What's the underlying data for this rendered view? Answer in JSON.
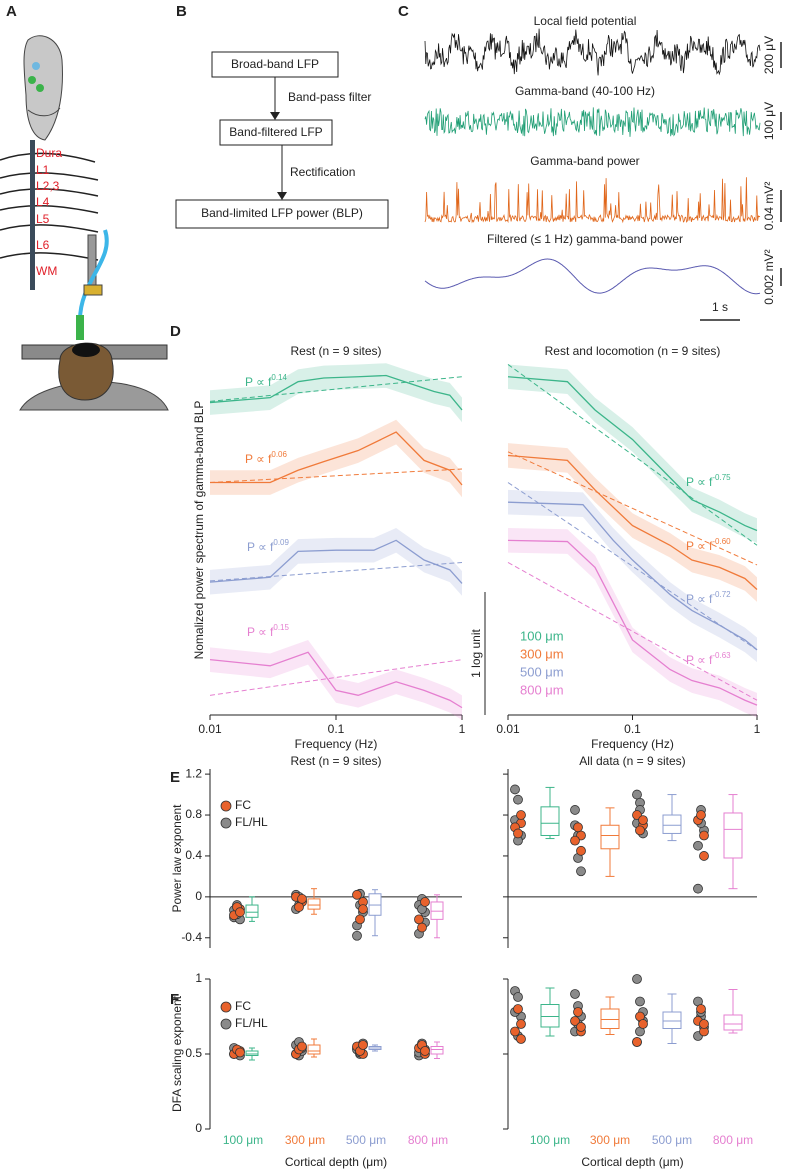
{
  "panel_labels": [
    "A",
    "B",
    "C",
    "D",
    "E",
    "F"
  ],
  "depths": [
    {
      "name": "100 μm",
      "color": "#3cb58a"
    },
    {
      "name": "300 μm",
      "color": "#f07a3a"
    },
    {
      "name": "500 μm",
      "color": "#8c9dd0"
    },
    {
      "name": "800 μm",
      "color": "#e57fd0"
    }
  ],
  "panel_a": {
    "layers": [
      "Dura",
      "L1",
      "L2,3",
      "L4",
      "L5",
      "L6",
      "WM"
    ]
  },
  "panel_b": {
    "nodes": [
      "Broad-band LFP",
      "Band-filtered LFP",
      "Band-limited LFP power (BLP)"
    ],
    "edges": [
      "Band-pass filter",
      "Rectification"
    ]
  },
  "panel_c": {
    "traces": [
      {
        "title": "Local field potential",
        "scale": "200 μV",
        "color": "#111111"
      },
      {
        "title": "Gamma-band (40-100 Hz)",
        "scale": "100 μV",
        "color": "#1f9e74"
      },
      {
        "title": "Gamma-band power",
        "scale": "0.04 mV²",
        "color": "#e0661a"
      },
      {
        "title": "Filtered (≤ 1 Hz) gamma-band power",
        "scale": "0.002 mV²",
        "color": "#5a5ab0"
      }
    ],
    "time_scale": "1 s"
  },
  "panel_d": {
    "ylabel": "Nomalized power spectrum of gamma-band BLP",
    "xlabel": "Frequency (Hz)",
    "xscale": "log",
    "xlim": [
      0.01,
      1
    ],
    "xticks": [
      0.01,
      0.1,
      1
    ],
    "ylim": [
      0,
      3
    ],
    "scale_bar": "1 log unit",
    "fit_prefix": "P ∝ f",
    "charts": [
      {
        "title": "Rest (n = 9 sites)",
        "series": [
          {
            "x": [
              0.01,
              0.03,
              0.05,
              0.08,
              0.15,
              0.25,
              0.4,
              0.6,
              0.8,
              1
            ],
            "values": [
              2.54,
              2.58,
              2.71,
              2.74,
              2.75,
              2.76,
              2.69,
              2.63,
              2.6,
              2.48
            ],
            "fit": [
              2.55,
              2.75
            ],
            "exponent": "0.14"
          },
          {
            "x": [
              0.01,
              0.03,
              0.05,
              0.08,
              0.15,
              0.3,
              0.5,
              0.8,
              1
            ],
            "values": [
              1.89,
              1.89,
              1.99,
              2.06,
              2.15,
              2.3,
              2.07,
              1.99,
              1.87
            ],
            "fit": [
              1.89,
              2.0
            ],
            "exponent": "0.06"
          },
          {
            "x": [
              0.01,
              0.03,
              0.05,
              0.1,
              0.2,
              0.3,
              0.5,
              0.8,
              1
            ],
            "values": [
              1.08,
              1.12,
              1.33,
              1.34,
              1.34,
              1.42,
              1.26,
              1.18,
              1.07
            ],
            "fit": [
              1.09,
              1.24
            ],
            "exponent": "0.09"
          },
          {
            "x": [
              0.01,
              0.03,
              0.06,
              0.1,
              0.15,
              0.3,
              0.5,
              0.8,
              1
            ],
            "values": [
              0.45,
              0.4,
              0.51,
              0.2,
              0.16,
              0.27,
              0.2,
              0.12,
              0.06
            ],
            "fit": [
              0.16,
              0.45
            ],
            "exponent": "0.15"
          }
        ]
      },
      {
        "title": "Rest and locomotion (n = 9 sites)",
        "series": [
          {
            "x": [
              0.01,
              0.03,
              0.05,
              0.1,
              0.2,
              0.3,
              0.5,
              0.8,
              1
            ],
            "values": [
              2.75,
              2.71,
              2.48,
              2.24,
              1.93,
              1.75,
              1.65,
              1.54,
              1.5
            ],
            "fit": [
              2.85,
              1.38
            ],
            "exponent": "-0.75"
          },
          {
            "x": [
              0.01,
              0.03,
              0.05,
              0.1,
              0.2,
              0.3,
              0.5,
              0.8,
              1
            ],
            "values": [
              2.11,
              2.07,
              1.83,
              1.54,
              1.38,
              1.26,
              1.2,
              1.11,
              1.02
            ],
            "fit": [
              2.14,
              1.22
            ],
            "exponent": "-0.60"
          },
          {
            "x": [
              0.01,
              0.04,
              0.07,
              0.1,
              0.2,
              0.3,
              0.5,
              0.8,
              1
            ],
            "values": [
              1.73,
              1.71,
              1.42,
              1.26,
              0.98,
              0.85,
              0.73,
              0.61,
              0.53
            ],
            "fit": [
              1.89,
              0.53
            ],
            "exponent": "-0.72"
          },
          {
            "x": [
              0.01,
              0.03,
              0.05,
              0.1,
              0.2,
              0.3,
              0.5,
              0.8,
              1
            ],
            "values": [
              1.42,
              1.41,
              1.2,
              0.61,
              0.37,
              0.28,
              0.22,
              0.12,
              0.08
            ],
            "fit": [
              1.24,
              0.12
            ],
            "exponent": "-0.63"
          }
        ]
      }
    ]
  },
  "regions": [
    {
      "name": "FC",
      "color": "#e8622c"
    },
    {
      "name": "FL/HL",
      "color": "#8a8a8a"
    }
  ],
  "xlabel_depth": "Cortical depth (μm)",
  "panel_e": {
    "ylabel": "Power law exponent",
    "ylim": [
      -0.5,
      1.25
    ],
    "yticks": [
      -0.4,
      0,
      0.4,
      0.8,
      1.2
    ],
    "zero_line": true,
    "charts": [
      {
        "title": "Rest (n = 9 sites)",
        "groups": [
          {
            "fc": [
              -0.12,
              -0.18,
              -0.1,
              -0.15
            ],
            "flhl": [
              -0.2,
              -0.08,
              -0.22,
              -0.13,
              -0.17
            ],
            "box": [
              -0.24,
              -0.2,
              -0.15,
              -0.08,
              0
            ]
          },
          {
            "fc": [
              -0.05,
              0,
              -0.1,
              -0.02
            ],
            "flhl": [
              0.02,
              -0.08,
              -0.04,
              -0.12,
              0
            ],
            "box": [
              -0.17,
              -0.12,
              -0.08,
              -0.02,
              0.08
            ]
          },
          {
            "fc": [
              -0.05,
              0.02,
              -0.22,
              -0.12
            ],
            "flhl": [
              -0.38,
              0.03,
              -0.15,
              -0.28,
              -0.08
            ],
            "box": [
              -0.38,
              -0.18,
              -0.08,
              0.03,
              0.07
            ]
          },
          {
            "fc": [
              -0.22,
              -0.3,
              -0.05
            ],
            "flhl": [
              -0.36,
              -0.02,
              -0.15,
              -0.08,
              -0.12,
              -0.25
            ],
            "box": [
              -0.4,
              -0.22,
              -0.14,
              -0.05,
              0.02
            ]
          }
        ]
      },
      {
        "title": "All data (n = 9 sites)",
        "groups": [
          {
            "fc": [
              0.72,
              0.68,
              0.62,
              0.8
            ],
            "flhl": [
              1.05,
              0.95,
              0.6,
              0.75,
              0.55
            ],
            "box": [
              0.57,
              0.6,
              0.72,
              0.88,
              1.07
            ]
          },
          {
            "fc": [
              0.6,
              0.55,
              0.68,
              0.45
            ],
            "flhl": [
              0.85,
              0.38,
              0.25,
              0.7,
              0.6
            ],
            "box": [
              0.2,
              0.47,
              0.6,
              0.7,
              0.87
            ]
          },
          {
            "fc": [
              0.7,
              0.8,
              0.65,
              0.75
            ],
            "flhl": [
              1.0,
              0.92,
              0.62,
              0.72,
              0.85
            ],
            "box": [
              0.55,
              0.62,
              0.7,
              0.8,
              1.0
            ]
          },
          {
            "fc": [
              0.6,
              0.75,
              0.8,
              0.4
            ],
            "flhl": [
              0.08,
              0.85,
              0.65,
              0.5,
              0.72
            ],
            "box": [
              0.08,
              0.38,
              0.66,
              0.82,
              1.0
            ]
          }
        ]
      }
    ]
  },
  "panel_f": {
    "ylabel": "DFA scaling exponent",
    "ylim": [
      0,
      1
    ],
    "yticks": [
      0,
      0.5,
      1
    ],
    "charts": [
      {
        "groups": [
          {
            "fc": [
              0.52,
              0.5,
              0.53,
              0.51
            ],
            "flhl": [
              0.5,
              0.52,
              0.49,
              0.54,
              0.51
            ],
            "box": [
              0.46,
              0.49,
              0.5,
              0.52,
              0.54
            ]
          },
          {
            "fc": [
              0.5,
              0.53,
              0.55
            ],
            "flhl": [
              0.56,
              0.49,
              0.52,
              0.5,
              0.58,
              0.54
            ],
            "box": [
              0.48,
              0.5,
              0.52,
              0.56,
              0.6
            ]
          },
          {
            "fc": [
              0.5,
              0.55,
              0.52,
              0.56
            ],
            "flhl": [
              0.54,
              0.5,
              0.57,
              0.53,
              0.51
            ],
            "box": [
              0.52,
              0.53,
              0.54,
              0.55,
              0.56
            ]
          },
          {
            "fc": [
              0.5,
              0.54,
              0.56,
              0.52
            ],
            "flhl": [
              0.49,
              0.57,
              0.53,
              0.51,
              0.55
            ],
            "box": [
              0.47,
              0.5,
              0.53,
              0.55,
              0.58
            ]
          }
        ]
      },
      {
        "groups": [
          {
            "fc": [
              0.7,
              0.65,
              0.8,
              0.6
            ],
            "flhl": [
              0.92,
              0.88,
              0.75,
              0.78,
              0.62
            ],
            "box": [
              0.62,
              0.68,
              0.75,
              0.83,
              0.94
            ]
          },
          {
            "fc": [
              0.65,
              0.72,
              0.78,
              0.68
            ],
            "flhl": [
              0.9,
              0.82,
              0.75,
              0.65,
              0.7
            ],
            "box": [
              0.63,
              0.67,
              0.73,
              0.8,
              0.88
            ]
          },
          {
            "fc": [
              0.58,
              0.75,
              0.7
            ],
            "flhl": [
              1.0,
              0.85,
              0.78,
              0.58,
              0.65,
              0.72
            ],
            "box": [
              0.57,
              0.67,
              0.72,
              0.78,
              0.9
            ]
          },
          {
            "fc": [
              0.65,
              0.72,
              0.8,
              0.7
            ],
            "flhl": [
              0.85,
              0.75,
              0.68,
              0.62,
              0.78
            ],
            "box": [
              0.64,
              0.66,
              0.7,
              0.76,
              0.93
            ]
          }
        ]
      }
    ]
  }
}
